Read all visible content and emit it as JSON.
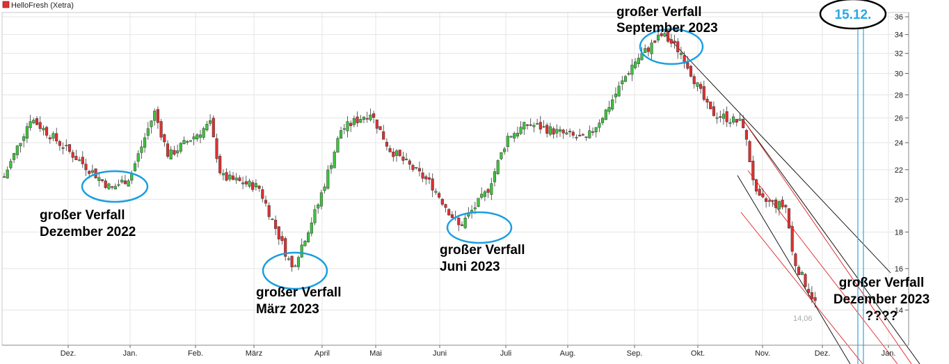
{
  "chart_data": {
    "type": "candlestick",
    "title": "HelloFresh (Xetra)",
    "legend": {
      "label": "HelloFresh (Xetra)",
      "color": "#e03030",
      "placement": "top-left"
    },
    "y_axis": {
      "side": "right",
      "scale": "log",
      "range": [
        12.5,
        36.5
      ],
      "ticks": [
        14,
        16,
        18,
        20,
        22,
        24,
        26,
        28,
        30,
        32,
        34,
        36
      ]
    },
    "x_axis": {
      "months": [
        "Dez.",
        "Jan.",
        "Feb.",
        "März",
        "April",
        "Mai",
        "Juni",
        "Juli",
        "Aug.",
        "Sep.",
        "Okt.",
        "Nov.",
        "Dez.",
        "Jan."
      ]
    },
    "grid": true,
    "colors": {
      "up": "#3cc43c",
      "down": "#e03030",
      "circle": "#1a9ee0",
      "date_line": "#29a8e0",
      "channel_black": "#000000",
      "channel_red": "#e02020"
    },
    "last_price_label": "14,06",
    "price_path": [
      [
        "Nov.",
        21.3
      ],
      [
        "Dez.",
        26.0
      ],
      [
        "Dez.",
        20.7
      ],
      [
        "Jan.",
        21.5
      ],
      [
        "Jan.",
        26.5
      ],
      [
        "Feb.",
        23.0
      ],
      [
        "Feb.",
        25.5
      ],
      [
        "Feb.",
        21.5
      ],
      [
        "März",
        20.8
      ],
      [
        "März",
        16.0
      ],
      [
        "April",
        19.5
      ],
      [
        "April",
        25.0
      ],
      [
        "Mai",
        26.5
      ],
      [
        "Mai",
        23.5
      ],
      [
        "Juni",
        21.0
      ],
      [
        "Juni",
        18.3
      ],
      [
        "Juli",
        20.5
      ],
      [
        "Juli",
        24.5
      ],
      [
        "Aug.",
        25.5
      ],
      [
        "Aug.",
        24.2
      ],
      [
        "Aug.",
        26.5
      ],
      [
        "Sep.",
        31.0
      ],
      [
        "Sep.",
        34.0
      ],
      [
        "Okt.",
        32.0
      ],
      [
        "Okt.",
        26.5
      ],
      [
        "Nov.",
        25.5
      ],
      [
        "Nov.",
        20.0
      ],
      [
        "Nov.",
        19.5
      ],
      [
        "Nov.",
        16.5
      ],
      [
        "Dez.",
        14.06
      ]
    ],
    "channels": [
      {
        "color": "black",
        "from": [
          "Sep.",
          34.5
        ],
        "to": [
          "Jan.",
          16.0
        ]
      },
      {
        "color": "black",
        "from": [
          "Nov.",
          26.0
        ],
        "to": [
          "Jan.",
          12.5
        ]
      },
      {
        "color": "black",
        "from": [
          "Okt.",
          22.3
        ],
        "to": [
          "Dez.",
          12.5
        ]
      },
      {
        "color": "red",
        "from": [
          "Nov.",
          26.0
        ],
        "to": [
          "Jan.",
          12.5
        ]
      },
      {
        "color": "red",
        "from": [
          "Okt.",
          21.5
        ],
        "to": [
          "Dez.",
          12.5
        ]
      },
      {
        "color": "red",
        "from": [
          "Okt.",
          18.2
        ],
        "to": [
          "Dez.",
          12.5
        ]
      }
    ],
    "circles": [
      {
        "center": [
          "Jan.",
          20.6
        ]
      },
      {
        "center": [
          "April",
          15.8
        ]
      },
      {
        "center": [
          "Juni",
          18.2
        ]
      },
      {
        "center": [
          "Sep.",
          33.5
        ]
      }
    ],
    "annotations": [
      {
        "lines": [
          "großer Verfall",
          "Dezember 2022"
        ]
      },
      {
        "lines": [
          "großer Verfall",
          "März 2023"
        ]
      },
      {
        "lines": [
          "großer Verfall",
          "Juni 2023"
        ]
      },
      {
        "lines": [
          "großer Verfall",
          "September 2023"
        ]
      },
      {
        "lines": [
          "großer Verfall",
          "Dezember 2023",
          "????"
        ]
      }
    ],
    "date_marker": {
      "label": "15.12.",
      "date": "2023-12-15"
    }
  }
}
